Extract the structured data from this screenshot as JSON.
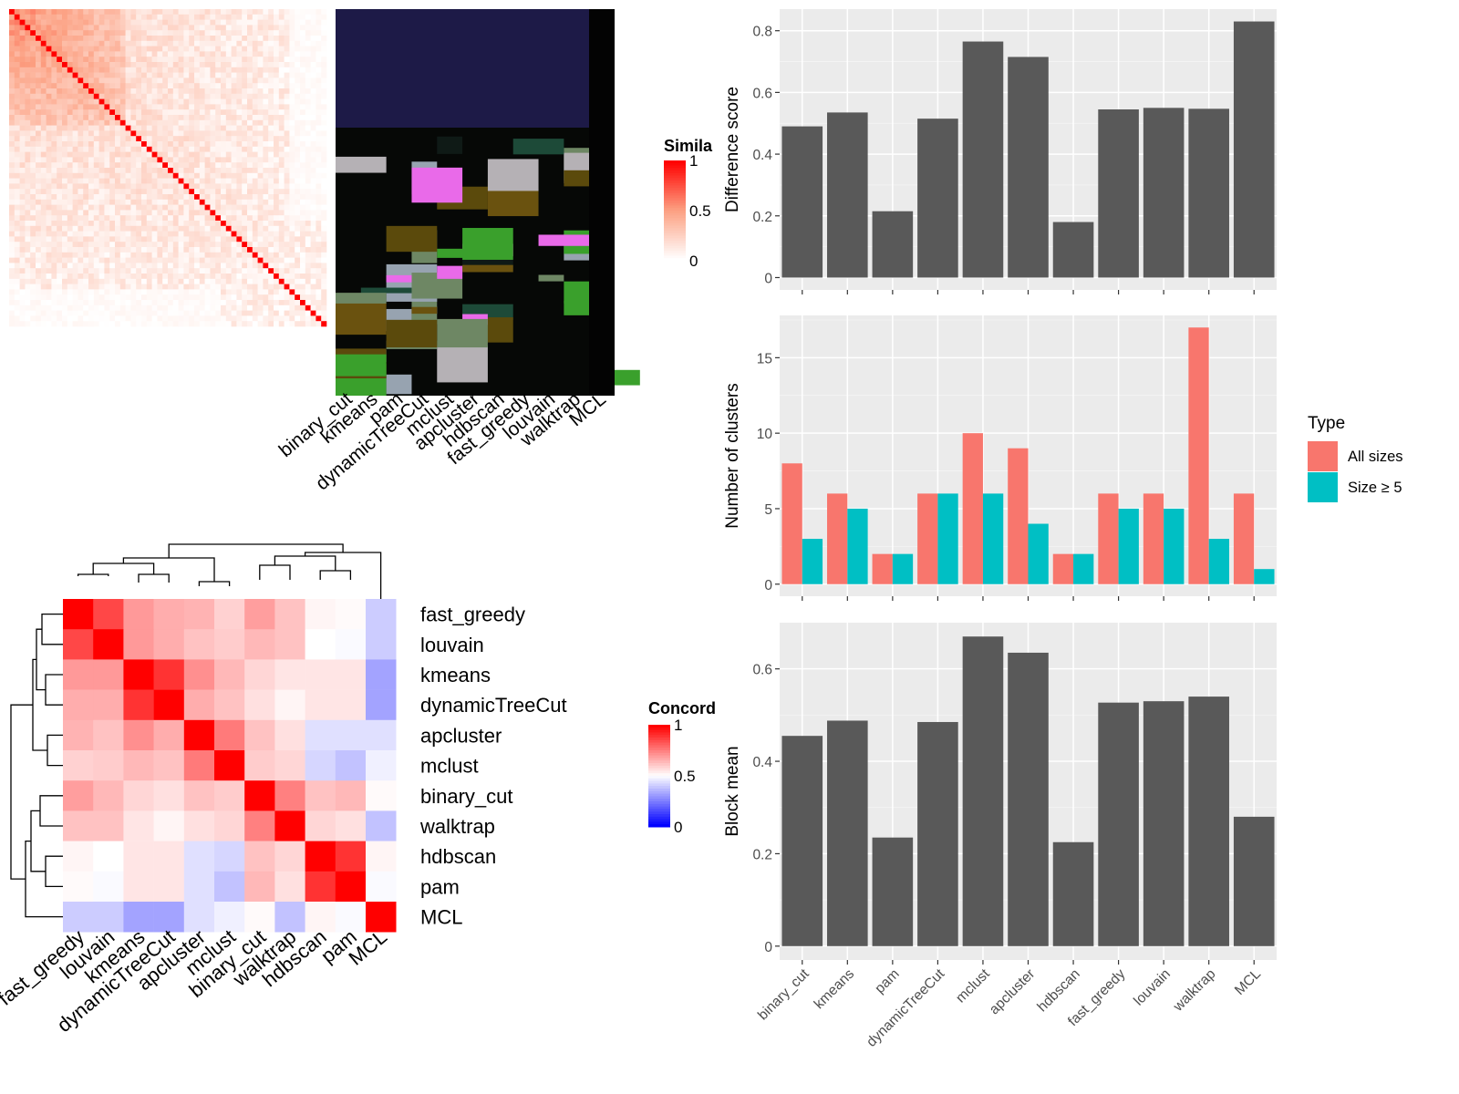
{
  "chart_data": [
    {
      "id": "similarity_heatmap",
      "type": "heatmap",
      "n": 60,
      "legend": {
        "title": "Simila",
        "ticks": [
          1,
          0.5,
          0
        ],
        "colors": {
          "low": "#ffffff",
          "mid": "#fc9272",
          "high": "#ff0000"
        }
      },
      "panel_columns": [
        "binary_cut",
        "kmeans",
        "pam",
        "dynamicTreeCut",
        "mclust",
        "apcluster",
        "hdbscan",
        "fast_greedy",
        "louvain",
        "walktrap",
        "MCL"
      ],
      "note": "Unlabeled similarity matrix with diagonal = 1; adjacent classification panel shows cluster membership per method."
    },
    {
      "id": "concordance_heatmap",
      "type": "heatmap",
      "col_labels": [
        "fast_greedy",
        "louvain",
        "kmeans",
        "dynamicTreeCut",
        "apcluster",
        "mclust",
        "binary_cut",
        "walktrap",
        "hdbscan",
        "pam",
        "MCL"
      ],
      "row_labels": [
        "fast_greedy",
        "louvain",
        "kmeans",
        "dynamicTreeCut",
        "apcluster",
        "mclust",
        "binary_cut",
        "walktrap",
        "hdbscan",
        "pam",
        "MCL"
      ],
      "values": [
        [
          1.0,
          0.86,
          0.7,
          0.66,
          0.65,
          0.59,
          0.69,
          0.62,
          0.52,
          0.51,
          0.4
        ],
        [
          0.86,
          1.0,
          0.7,
          0.66,
          0.62,
          0.6,
          0.64,
          0.62,
          0.5,
          0.49,
          0.4
        ],
        [
          0.7,
          0.7,
          1.0,
          0.9,
          0.72,
          0.64,
          0.58,
          0.55,
          0.55,
          0.55,
          0.32
        ],
        [
          0.66,
          0.66,
          0.9,
          1.0,
          0.66,
          0.62,
          0.56,
          0.52,
          0.55,
          0.55,
          0.32
        ],
        [
          0.65,
          0.62,
          0.72,
          0.66,
          1.0,
          0.76,
          0.62,
          0.56,
          0.44,
          0.44,
          0.44
        ],
        [
          0.59,
          0.6,
          0.64,
          0.62,
          0.76,
          1.0,
          0.6,
          0.58,
          0.42,
          0.38,
          0.47
        ],
        [
          0.69,
          0.64,
          0.58,
          0.56,
          0.62,
          0.6,
          1.0,
          0.75,
          0.62,
          0.64,
          0.51
        ],
        [
          0.62,
          0.62,
          0.55,
          0.52,
          0.56,
          0.58,
          0.75,
          1.0,
          0.58,
          0.56,
          0.38
        ],
        [
          0.52,
          0.5,
          0.55,
          0.55,
          0.44,
          0.42,
          0.62,
          0.58,
          1.0,
          0.9,
          0.52
        ],
        [
          0.51,
          0.49,
          0.55,
          0.55,
          0.44,
          0.38,
          0.64,
          0.56,
          0.9,
          1.0,
          0.49
        ],
        [
          0.4,
          0.4,
          0.32,
          0.32,
          0.44,
          0.47,
          0.51,
          0.38,
          0.52,
          0.49,
          1.0
        ]
      ],
      "legend": {
        "title": "Concord",
        "ticks": [
          1,
          0.5,
          0
        ],
        "colors": {
          "low": "#0000ff",
          "mid": "#ffffff",
          "high": "#ff0000"
        }
      }
    },
    {
      "id": "difference_score",
      "type": "bar",
      "categories": [
        "binary_cut",
        "kmeans",
        "pam",
        "dynamicTreeCut",
        "mclust",
        "apcluster",
        "hdbscan",
        "fast_greedy",
        "louvain",
        "walktrap",
        "MCL"
      ],
      "values": [
        0.49,
        0.535,
        0.215,
        0.515,
        0.765,
        0.715,
        0.18,
        0.545,
        0.55,
        0.547,
        0.83
      ],
      "ylabel": "Difference score",
      "ylim": [
        -0.04,
        0.87
      ],
      "yticks": [
        0.0,
        0.2,
        0.4,
        0.6,
        0.8
      ],
      "grid": true
    },
    {
      "id": "number_of_clusters",
      "type": "bar",
      "categories": [
        "binary_cut",
        "kmeans",
        "pam",
        "dynamicTreeCut",
        "mclust",
        "apcluster",
        "hdbscan",
        "fast_greedy",
        "louvain",
        "walktrap",
        "MCL"
      ],
      "series": [
        {
          "name": "All sizes",
          "values": [
            8,
            6,
            2,
            6,
            10,
            9,
            2,
            6,
            6,
            17,
            6
          ]
        },
        {
          "name": "Size ≥ 5",
          "values": [
            3,
            5,
            2,
            6,
            6,
            4,
            2,
            5,
            5,
            3,
            1
          ]
        }
      ],
      "ylabel": "Number of clusters",
      "ylim": [
        -0.8,
        17.8
      ],
      "yticks": [
        0,
        5,
        10,
        15
      ],
      "legend_title": "Type",
      "legend_position": "right",
      "grid": true
    },
    {
      "id": "block_mean",
      "type": "bar",
      "categories": [
        "binary_cut",
        "kmeans",
        "pam",
        "dynamicTreeCut",
        "mclust",
        "apcluster",
        "hdbscan",
        "fast_greedy",
        "louvain",
        "walktrap",
        "MCL"
      ],
      "values": [
        0.455,
        0.488,
        0.235,
        0.485,
        0.67,
        0.635,
        0.225,
        0.527,
        0.53,
        0.54,
        0.28
      ],
      "ylabel": "Block mean",
      "ylim": [
        -0.03,
        0.7
      ],
      "yticks": [
        0.0,
        0.2,
        0.4,
        0.6
      ],
      "grid": true
    }
  ],
  "colors": {
    "bar": "#595959",
    "panel_bg": "#ebebeb",
    "all_sizes": "#f8766d",
    "size_ge5": "#00bfc4",
    "axis_text": "#4d4d4d"
  }
}
